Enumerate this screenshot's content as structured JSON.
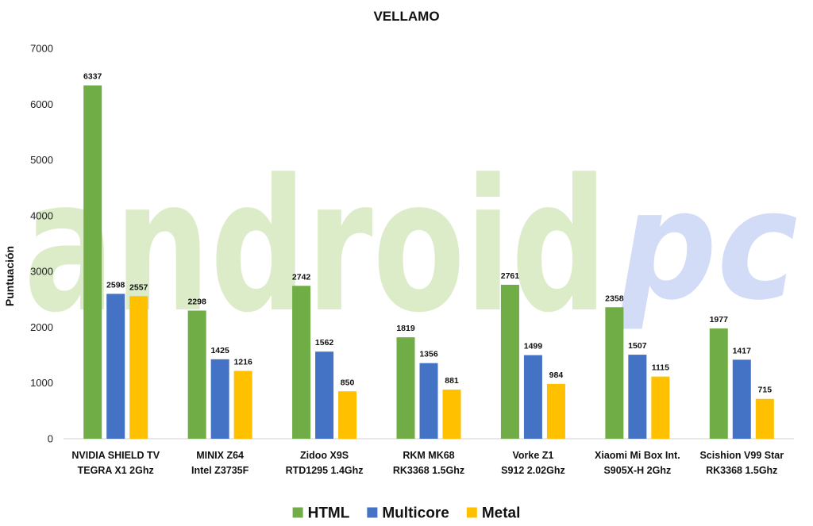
{
  "chart_data": {
    "type": "bar",
    "title": "VELLAMO",
    "xlabel": "",
    "ylabel": "Puntuación",
    "ylim": [
      0,
      7000
    ],
    "yticks": [
      0,
      1000,
      2000,
      3000,
      4000,
      5000,
      6000,
      7000
    ],
    "grid": false,
    "legend_position": "bottom",
    "categories": [
      [
        "NVIDIA SHIELD TV",
        "TEGRA X1 2Ghz"
      ],
      [
        "MINIX Z64",
        "Intel Z3735F"
      ],
      [
        "Zidoo X9S",
        "RTD1295 1.4Ghz"
      ],
      [
        "RKM MK68",
        "RK3368 1.5Ghz"
      ],
      [
        "Vorke Z1",
        "S912 2.02Ghz"
      ],
      [
        "Xiaomi Mi Box Int.",
        "S905X-H 2Ghz"
      ],
      [
        "Scishion V99 Star",
        "RK3368 1.5Ghz"
      ]
    ],
    "series": [
      {
        "name": "HTML",
        "color": "#70ad47",
        "values": [
          6337,
          2298,
          2742,
          1819,
          2761,
          2358,
          1977
        ]
      },
      {
        "name": "Multicore",
        "color": "#4472c4",
        "values": [
          2598,
          1425,
          1562,
          1356,
          1499,
          1507,
          1417
        ]
      },
      {
        "name": "Metal",
        "color": "#ffc000",
        "values": [
          2557,
          1216,
          850,
          881,
          984,
          1115,
          715
        ]
      }
    ]
  },
  "watermark": {
    "main": "android",
    "suffix": "pc"
  }
}
